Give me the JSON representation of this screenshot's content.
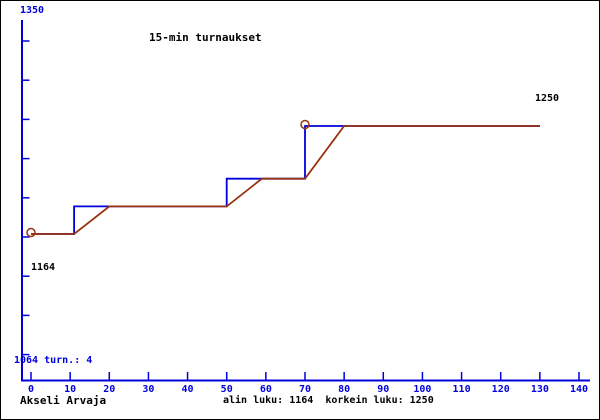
{
  "window": {
    "background": "#ffffff",
    "border_color": "#000000"
  },
  "colors": {
    "axis": "#0000dd",
    "blue_text": "#0000dd",
    "black_text": "#000000",
    "step_series": "#0000dd",
    "ramp_series": "#993311"
  },
  "labels": {
    "y_max": "1350",
    "y_min_info": "1064 turn.: 4",
    "start_value": "1164",
    "end_value": "1250",
    "player": "Akseli Arvaja",
    "summary": "alin luku: 1164  korkein luku: 1250"
  },
  "chart_data": {
    "type": "line",
    "title": "15-min turnaukset",
    "xlabel": "",
    "ylabel": "",
    "x_range": [
      0,
      140
    ],
    "x_tick_labels": [
      "0",
      "10",
      "20",
      "30",
      "40",
      "50",
      "60",
      "70",
      "80",
      "90",
      "100",
      "110",
      "120",
      "130",
      "140"
    ],
    "y_top_label": "1350",
    "y_bottom_label": "1064",
    "y_tick_count": 9,
    "grid": false,
    "legend": "none",
    "lowest_value": 1164,
    "highest_value": 1250,
    "tournament_count": 4,
    "series": [
      {
        "name": "rating-step",
        "color": "#0000dd",
        "points": [
          [
            0,
            1164
          ],
          [
            11,
            1164
          ],
          [
            11,
            1186
          ],
          [
            50,
            1186
          ],
          [
            50,
            1208
          ],
          [
            70,
            1208
          ],
          [
            70,
            1250
          ],
          [
            130,
            1250
          ]
        ]
      },
      {
        "name": "rating-ramp",
        "color": "#993311",
        "points": [
          [
            0,
            1164
          ],
          [
            11,
            1164
          ],
          [
            20,
            1186
          ],
          [
            50,
            1186
          ],
          [
            59,
            1208
          ],
          [
            70,
            1208
          ],
          [
            80,
            1250
          ],
          [
            130,
            1250
          ]
        ]
      }
    ],
    "markers": [
      {
        "x": 0,
        "y": 1164
      },
      {
        "x": 70,
        "y": 1250
      }
    ]
  }
}
